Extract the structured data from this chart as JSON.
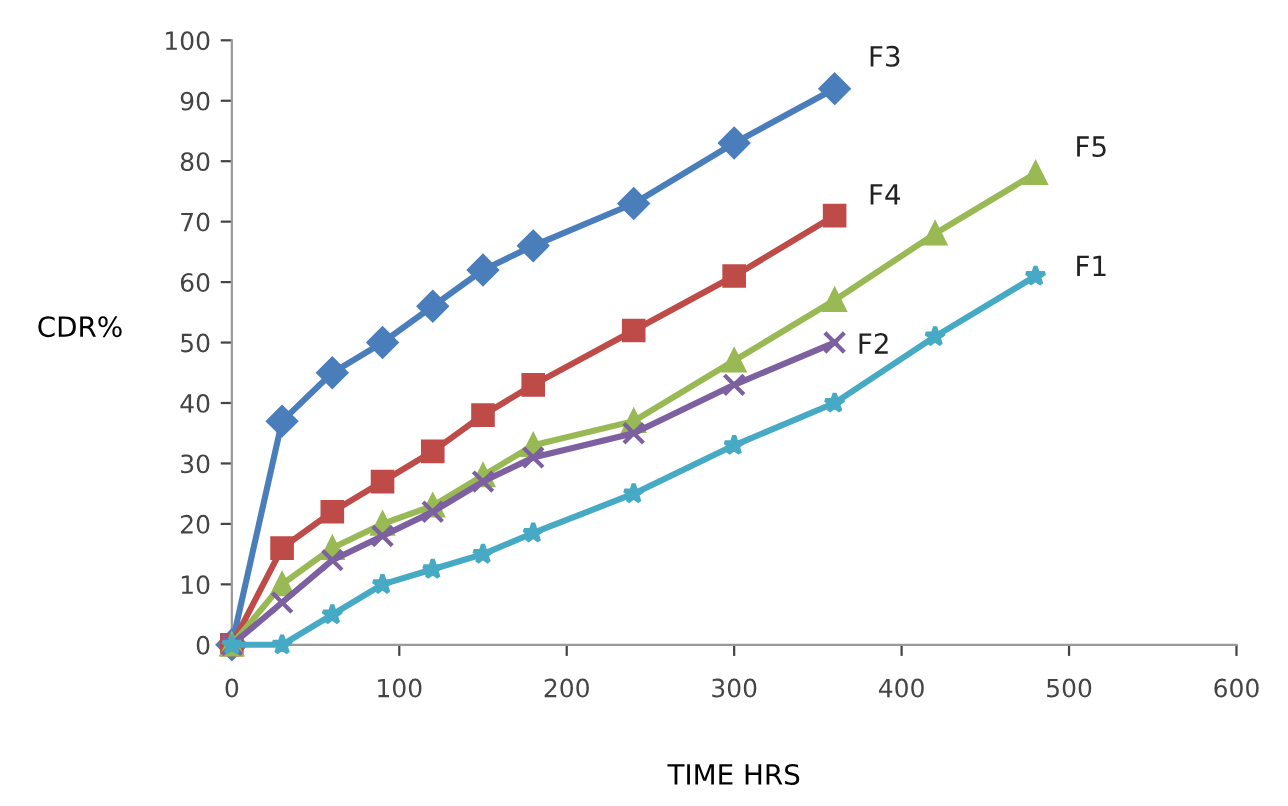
{
  "chart_data": {
    "type": "line",
    "xlabel": "TIME HRS",
    "ylabel": "CDR%",
    "xlim": [
      0,
      600
    ],
    "ylim": [
      0,
      100
    ],
    "xticks": [
      0,
      100,
      200,
      300,
      400,
      500,
      600
    ],
    "yticks": [
      0,
      10,
      20,
      30,
      40,
      50,
      60,
      70,
      80,
      90,
      100
    ],
    "grid": false,
    "legend": false,
    "series": [
      {
        "name": "F3",
        "color": "#4a7ebb",
        "marker": "diamond",
        "x": [
          0,
          30,
          60,
          90,
          120,
          150,
          180,
          240,
          300,
          360
        ],
        "values": [
          0,
          37,
          45,
          50,
          56,
          62,
          66,
          73,
          83,
          92
        ]
      },
      {
        "name": "F4",
        "color": "#be4b48",
        "marker": "square",
        "x": [
          0,
          30,
          60,
          90,
          120,
          150,
          180,
          240,
          300,
          360
        ],
        "values": [
          0,
          16,
          22,
          27,
          32,
          38,
          43,
          52,
          61,
          71
        ]
      },
      {
        "name": "F5",
        "color": "#98b954",
        "marker": "triangle",
        "x": [
          0,
          30,
          60,
          90,
          120,
          150,
          180,
          240,
          300,
          360,
          420,
          480
        ],
        "values": [
          0,
          10,
          16,
          20,
          23,
          28,
          33,
          37,
          47,
          57,
          68,
          78
        ]
      },
      {
        "name": "F2",
        "color": "#7d60a0",
        "marker": "cross",
        "x": [
          0,
          30,
          60,
          90,
          120,
          150,
          180,
          240,
          300,
          360
        ],
        "values": [
          0,
          7,
          14,
          18,
          22,
          27,
          31,
          35,
          43,
          50
        ]
      },
      {
        "name": "F1",
        "color": "#46aac5",
        "marker": "star",
        "x": [
          0,
          30,
          60,
          90,
          120,
          150,
          180,
          240,
          300,
          360,
          420,
          480
        ],
        "values": [
          0,
          0,
          5,
          10,
          12.5,
          15,
          18.5,
          25,
          33,
          40,
          51,
          61
        ]
      }
    ]
  }
}
